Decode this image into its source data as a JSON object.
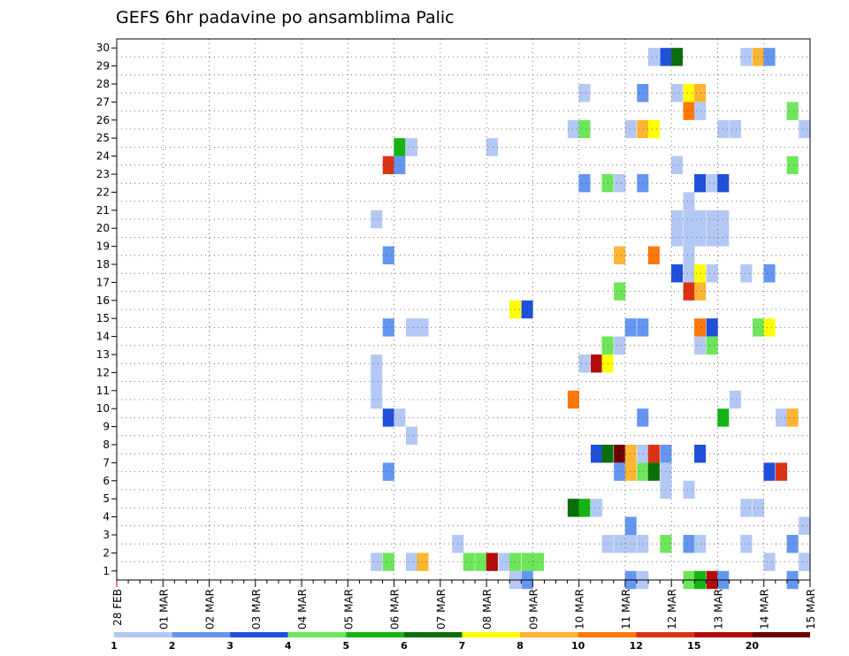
{
  "chart_data": {
    "type": "heatmap",
    "title": "GEFS 6hr padavine po ansamblima Palic",
    "xlabel": "",
    "ylabel": "",
    "x_tick_labels": [
      "28 FEB",
      "01 MAR",
      "02 MAR",
      "03 MAR",
      "04 MAR",
      "05 MAR",
      "06 MAR",
      "07 MAR",
      "08 MAR",
      "09 MAR",
      "10 MAR",
      "11 MAR",
      "12 MAR",
      "13 MAR",
      "14 MAR",
      "15 MAR"
    ],
    "x_range_days": [
      0,
      15
    ],
    "y_tick_labels": [
      "1",
      "2",
      "3",
      "4",
      "5",
      "6",
      "7",
      "8",
      "9",
      "10",
      "11",
      "12",
      "13",
      "14",
      "15",
      "16",
      "17",
      "18",
      "19",
      "20",
      "21",
      "22",
      "23",
      "24",
      "25",
      "26",
      "27",
      "28",
      "29",
      "30"
    ],
    "y_range": [
      0,
      30
    ],
    "grid": true,
    "legend": {
      "position": "bottom",
      "colors": [
        "#b4c8f5",
        "#6496f0",
        "#1e50dc",
        "#6ee65a",
        "#14b414",
        "#0a6e0a",
        "#ffff00",
        "#ffb432",
        "#ff780a",
        "#dc3214",
        "#b40a0a",
        "#6e0000"
      ],
      "labels": [
        "1",
        "2",
        "3",
        "4",
        "5",
        "6",
        "7",
        "8",
        "10",
        "12",
        "15",
        "20"
      ]
    },
    "cells": [
      [
        0,
        14.62,
        2
      ],
      [
        1,
        14.88,
        1
      ],
      [
        2,
        14.62,
        2
      ],
      [
        3,
        14.88,
        1
      ],
      [
        29,
        11.62,
        1
      ],
      [
        29,
        11.88,
        3
      ],
      [
        29,
        12.12,
        6
      ],
      [
        29,
        13.62,
        1
      ],
      [
        29,
        13.88,
        8
      ],
      [
        29,
        14.12,
        2
      ],
      [
        27,
        10.12,
        1
      ],
      [
        27,
        11.38,
        2
      ],
      [
        27,
        12.12,
        1
      ],
      [
        27,
        12.38,
        7
      ],
      [
        27,
        12.62,
        8
      ],
      [
        26,
        12.38,
        9
      ],
      [
        26,
        12.62,
        1
      ],
      [
        26,
        14.62,
        4
      ],
      [
        25,
        9.88,
        1
      ],
      [
        25,
        10.12,
        4
      ],
      [
        25,
        11.12,
        1
      ],
      [
        25,
        11.38,
        8
      ],
      [
        25,
        11.62,
        7
      ],
      [
        25,
        13.12,
        1
      ],
      [
        25,
        13.38,
        1
      ],
      [
        25,
        14.88,
        1
      ],
      [
        24,
        6.12,
        5
      ],
      [
        24,
        6.38,
        1
      ],
      [
        24,
        8.12,
        1
      ],
      [
        23,
        5.88,
        10
      ],
      [
        23,
        6.12,
        2
      ],
      [
        23,
        12.12,
        1
      ],
      [
        23,
        14.62,
        4
      ],
      [
        22,
        10.12,
        2
      ],
      [
        22,
        10.62,
        4
      ],
      [
        22,
        10.88,
        1
      ],
      [
        22,
        11.38,
        2
      ],
      [
        22,
        12.62,
        3
      ],
      [
        22,
        12.88,
        1
      ],
      [
        22,
        13.12,
        3
      ],
      [
        21,
        12.38,
        1
      ],
      [
        20,
        5.62,
        1
      ],
      [
        20,
        12.12,
        1
      ],
      [
        20,
        12.38,
        1
      ],
      [
        20,
        12.62,
        1
      ],
      [
        20,
        12.88,
        1
      ],
      [
        20,
        13.12,
        1
      ],
      [
        19,
        12.12,
        1
      ],
      [
        19,
        12.38,
        1
      ],
      [
        19,
        12.62,
        1
      ],
      [
        19,
        12.88,
        1
      ],
      [
        19,
        13.12,
        1
      ],
      [
        18,
        5.88,
        2
      ],
      [
        18,
        10.88,
        8
      ],
      [
        18,
        11.62,
        9
      ],
      [
        18,
        12.38,
        1
      ],
      [
        17,
        12.12,
        3
      ],
      [
        17,
        12.38,
        1
      ],
      [
        17,
        12.62,
        7
      ],
      [
        17,
        12.88,
        1
      ],
      [
        17,
        13.62,
        1
      ],
      [
        17,
        14.12,
        2
      ],
      [
        16,
        10.88,
        4
      ],
      [
        16,
        12.38,
        10
      ],
      [
        16,
        12.62,
        8
      ],
      [
        15,
        8.62,
        7
      ],
      [
        15,
        8.88,
        3
      ],
      [
        14,
        5.88,
        2
      ],
      [
        14,
        6.38,
        1
      ],
      [
        14,
        6.62,
        1
      ],
      [
        14,
        11.12,
        2
      ],
      [
        14,
        11.38,
        2
      ],
      [
        14,
        12.62,
        9
      ],
      [
        14,
        12.88,
        3
      ],
      [
        14,
        13.88,
        4
      ],
      [
        14,
        14.12,
        7
      ],
      [
        13,
        10.62,
        4
      ],
      [
        13,
        10.88,
        1
      ],
      [
        13,
        12.62,
        1
      ],
      [
        13,
        12.88,
        4
      ],
      [
        12,
        5.62,
        1
      ],
      [
        12,
        10.12,
        1
      ],
      [
        12,
        10.38,
        11
      ],
      [
        12,
        10.62,
        7
      ],
      [
        11,
        5.62,
        1
      ],
      [
        10,
        5.62,
        1
      ],
      [
        10,
        9.88,
        9
      ],
      [
        10,
        13.38,
        1
      ],
      [
        9,
        5.88,
        3
      ],
      [
        9,
        6.12,
        1
      ],
      [
        9,
        11.38,
        2
      ],
      [
        9,
        13.12,
        5
      ],
      [
        9,
        14.38,
        1
      ],
      [
        9,
        14.62,
        8
      ],
      [
        8,
        6.38,
        1
      ],
      [
        7,
        10.38,
        3
      ],
      [
        7,
        10.62,
        6
      ],
      [
        7,
        10.88,
        12
      ],
      [
        7,
        11.12,
        8
      ],
      [
        7,
        11.38,
        1
      ],
      [
        7,
        11.62,
        10
      ],
      [
        7,
        11.88,
        2
      ],
      [
        7,
        12.62,
        3
      ],
      [
        6,
        5.88,
        2
      ],
      [
        6,
        10.88,
        2
      ],
      [
        6,
        11.12,
        8
      ],
      [
        6,
        11.38,
        4
      ],
      [
        6,
        11.62,
        6
      ],
      [
        6,
        11.88,
        1
      ],
      [
        6,
        14.12,
        3
      ],
      [
        6,
        14.38,
        10
      ],
      [
        5,
        11.88,
        1
      ],
      [
        5,
        12.38,
        1
      ],
      [
        4,
        9.88,
        6
      ],
      [
        4,
        10.12,
        5
      ],
      [
        4,
        10.38,
        1
      ],
      [
        4,
        13.62,
        1
      ],
      [
        4,
        13.88,
        1
      ],
      [
        3,
        11.12,
        2
      ],
      [
        2,
        7.38,
        1
      ],
      [
        2,
        10.62,
        1
      ],
      [
        2,
        10.88,
        1
      ],
      [
        2,
        11.12,
        1
      ],
      [
        2,
        11.38,
        1
      ],
      [
        2,
        11.88,
        4
      ],
      [
        2,
        12.38,
        2
      ],
      [
        2,
        12.62,
        1
      ],
      [
        2,
        13.62,
        1
      ],
      [
        1,
        5.62,
        1
      ],
      [
        1,
        5.88,
        4
      ],
      [
        1,
        6.38,
        1
      ],
      [
        1,
        6.62,
        8
      ],
      [
        1,
        7.62,
        4
      ],
      [
        1,
        7.88,
        4
      ],
      [
        1,
        8.12,
        11
      ],
      [
        1,
        8.38,
        1
      ],
      [
        1,
        8.62,
        4
      ],
      [
        1,
        8.88,
        4
      ],
      [
        1,
        9.12,
        4
      ],
      [
        1,
        14.12,
        1
      ],
      [
        0,
        8.62,
        1
      ],
      [
        0,
        8.88,
        2
      ],
      [
        0,
        11.12,
        2
      ],
      [
        0,
        11.38,
        1
      ],
      [
        0,
        12.38,
        4
      ],
      [
        0,
        12.62,
        5
      ],
      [
        0,
        12.88,
        11
      ],
      [
        0,
        13.12,
        2
      ]
    ]
  }
}
